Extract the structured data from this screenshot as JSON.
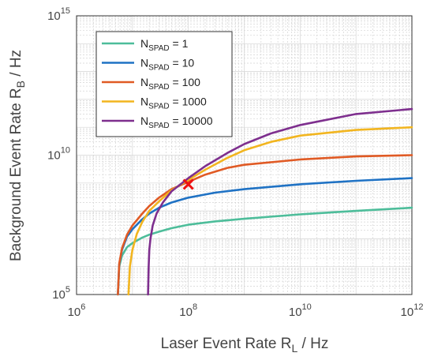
{
  "chart_data": {
    "type": "line",
    "xscale": "log",
    "yscale": "log",
    "xlim": [
      1000000.0,
      1000000000000.0
    ],
    "ylim": [
      100000.0,
      1000000000000000.0
    ],
    "xticks": [
      {
        "value": 1000000.0,
        "base": "10",
        "exp": "6"
      },
      {
        "value": 100000000.0,
        "base": "10",
        "exp": "8"
      },
      {
        "value": 10000000000.0,
        "base": "10",
        "exp": "10"
      },
      {
        "value": 1000000000000.0,
        "base": "10",
        "exp": "12"
      }
    ],
    "yticks": [
      {
        "value": 100000.0,
        "base": "10",
        "exp": "5"
      },
      {
        "value": 10000000000.0,
        "base": "10",
        "exp": "10"
      },
      {
        "value": 1000000000000000.0,
        "base": "10",
        "exp": "15"
      }
    ],
    "xlabel": {
      "main": "Laser Event Rate R",
      "sub": "L",
      "unit": " / Hz"
    },
    "ylabel": {
      "main": "Background Event Rate R",
      "sub": "B",
      "unit": " / Hz"
    },
    "grid": true,
    "minor_grid": true,
    "legend_position": "top-left",
    "series": [
      {
        "name_main": "N",
        "name_sub": "SPAD",
        "name_value": " = 1",
        "color": "#4dbd9a",
        "x": [
          5500000.0,
          5800000.0,
          6500000.0,
          8000000.0,
          10000000.0,
          15000000.0,
          20000000.0,
          30000000.0,
          50000000.0,
          100000000.0,
          300000000.0,
          1000000000.0,
          10000000000.0,
          100000000000.0,
          1000000000000.0
        ],
        "y": [
          100000.0,
          1000000.0,
          2500000.0,
          5000000.0,
          7000000.0,
          11000000.0,
          14000000.0,
          18000000.0,
          24000000.0,
          32000000.0,
          42000000.0,
          52000000.0,
          75000000.0,
          100000000.0,
          130000000.0
        ]
      },
      {
        "name_main": "N",
        "name_sub": "SPAD",
        "name_value": " = 10",
        "color": "#1f72c4",
        "x": [
          5500000.0,
          5800000.0,
          6500000.0,
          8000000.0,
          10000000.0,
          15000000.0,
          20000000.0,
          30000000.0,
          50000000.0,
          100000000.0,
          300000000.0,
          1000000000.0,
          10000000000.0,
          100000000000.0,
          1000000000000.0
        ],
        "y": [
          100000.0,
          1200000.0,
          4000000.0,
          12000000.0,
          22000000.0,
          50000000.0,
          80000000.0,
          130000000.0,
          200000000.0,
          300000000.0,
          450000000.0,
          600000000.0,
          900000000.0,
          1200000000.0,
          1500000000.0
        ]
      },
      {
        "name_main": "N",
        "name_sub": "SPAD",
        "name_value": " = 100",
        "color": "#e05a24",
        "x": [
          5500000.0,
          5800000.0,
          6500000.0,
          8000000.0,
          10000000.0,
          15000000.0,
          20000000.0,
          30000000.0,
          50000000.0,
          100000000.0,
          200000000.0,
          500000000.0,
          1000000000.0,
          10000000000.0,
          100000000000.0,
          1000000000000.0
        ],
        "y": [
          100000.0,
          1300000.0,
          4500000.0,
          14000000.0,
          30000000.0,
          80000000.0,
          150000000.0,
          300000000.0,
          600000000.0,
          1100000000.0,
          2000000000.0,
          3500000000.0,
          4500000000.0,
          7000000000.0,
          9000000000.0,
          10000000000.0
        ]
      },
      {
        "name_main": "N",
        "name_sub": "SPAD",
        "name_value": " = 1000",
        "color": "#f2b51f",
        "x": [
          8500000.0,
          9000000.0,
          10000000.0,
          12000000.0,
          15000000.0,
          20000000.0,
          30000000.0,
          50000000.0,
          100000000.0,
          200000000.0,
          500000000.0,
          1000000000.0,
          3000000000.0,
          10000000000.0,
          100000000000.0,
          1000000000000.0
        ],
        "y": [
          100000.0,
          1000000.0,
          4000000.0,
          15000000.0,
          40000000.0,
          100000000.0,
          220000000.0,
          550000000.0,
          1300000000.0,
          3000000000.0,
          8000000000.0,
          15000000000.0,
          30000000000.0,
          50000000000.0,
          80000000000.0,
          100000000000.0
        ]
      },
      {
        "name_main": "N",
        "name_sub": "SPAD",
        "name_value": " = 10000",
        "color": "#7e2f8e",
        "x": [
          19000000.0,
          19500000.0,
          20000000.0,
          21000000.0,
          23000000.0,
          27000000.0,
          35000000.0,
          50000000.0,
          100000000.0,
          200000000.0,
          500000000.0,
          1000000000.0,
          3000000000.0,
          10000000000.0,
          100000000000.0,
          1000000000000.0
        ],
        "y": [
          100000.0,
          1000000.0,
          4000000.0,
          10000000.0,
          30000000.0,
          80000000.0,
          200000000.0,
          500000000.0,
          1500000000.0,
          4000000000.0,
          12000000000.0,
          25000000000.0,
          60000000000.0,
          120000000000.0,
          300000000000.0,
          450000000000.0
        ]
      }
    ],
    "marker": {
      "x": 100000000.0,
      "y": 900000000.0,
      "symbol": "x",
      "color": "#ee1111"
    }
  }
}
